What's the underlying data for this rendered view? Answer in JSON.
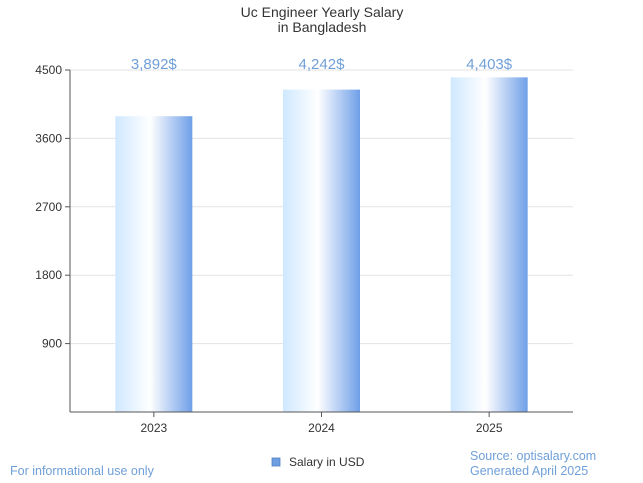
{
  "chart_data": {
    "type": "bar",
    "title_lines": [
      "Uc Engineer Yearly Salary",
      "in Bangladesh"
    ],
    "categories": [
      "2023",
      "2024",
      "2025"
    ],
    "series": [
      {
        "name": "Salary in USD",
        "values": [
          3892,
          4242,
          4403
        ],
        "labels": [
          "3,892$",
          "4,242$",
          "4,403$"
        ]
      }
    ],
    "ylim": [
      0,
      4500
    ],
    "yticks": [
      900,
      1800,
      2700,
      3600,
      4500
    ],
    "ytick_labels": [
      "900",
      "1800",
      "2700",
      "3600",
      "4500"
    ],
    "grid": true,
    "legend_position": "bottom-center",
    "colors": {
      "bar_light": "#cfe8ff",
      "bar_white": "#ffffff",
      "bar_dark": "#6f9fe8",
      "value_label": "#6f9fd8",
      "legend_swatch": "#6f9fe0"
    }
  },
  "footer": {
    "left_note": "For informational use only",
    "source": "Source: optisalary.com",
    "generated": "Generated April 2025"
  }
}
